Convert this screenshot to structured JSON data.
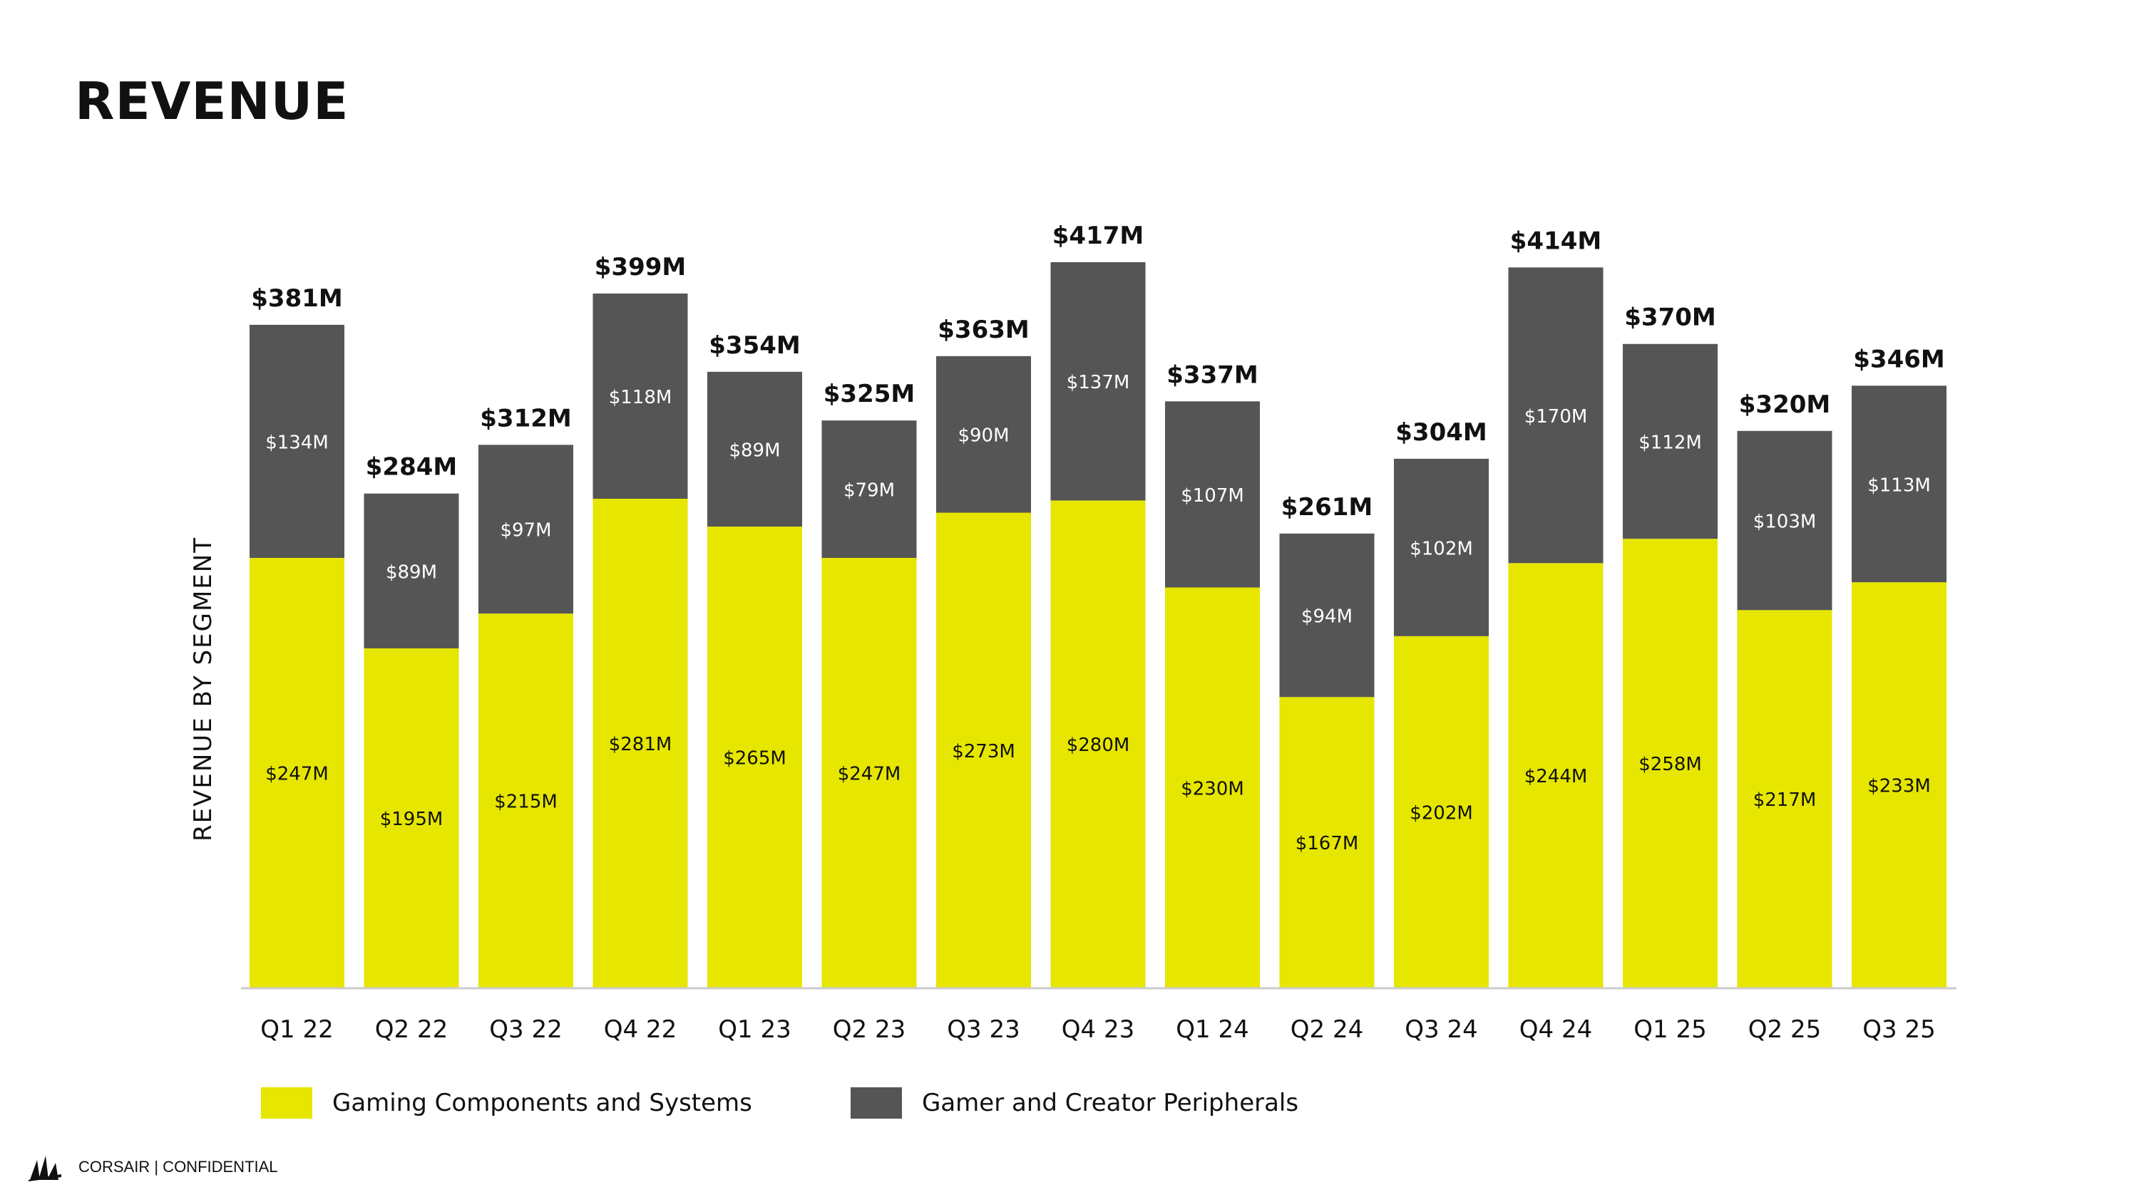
{
  "page": {
    "title": "REVENUE",
    "footer": "CORSAIR | CONFIDENTIAL",
    "logo_icon": "corsair-sails-icon"
  },
  "colors": {
    "gaming": "#E6E600",
    "peripherals": "#555555",
    "text": "#111111",
    "axis": "#cccccc"
  },
  "legend": [
    {
      "label": "Gaming Components and Systems",
      "color": "#E6E600"
    },
    {
      "label": "Gamer and Creator Peripherals",
      "color": "#555555"
    }
  ],
  "chart_data": {
    "type": "bar",
    "stacked": true,
    "title": "REVENUE",
    "xlabel": "",
    "ylabel": "REVENUE BY SEGMENT",
    "ylim": [
      0,
      417
    ],
    "grid": false,
    "legend_position": "bottom",
    "categories": [
      "Q1 22",
      "Q2 22",
      "Q3 22",
      "Q4 22",
      "Q1 23",
      "Q2 23",
      "Q3 23",
      "Q4 23",
      "Q1 24",
      "Q2 24",
      "Q3 24",
      "Q4 24",
      "Q1 25",
      "Q2 25",
      "Q3 25"
    ],
    "series": [
      {
        "name": "Gaming Components and Systems",
        "values": [
          247,
          195,
          215,
          281,
          265,
          247,
          273,
          280,
          230,
          167,
          202,
          244,
          258,
          217,
          233
        ]
      },
      {
        "name": "Gamer and Creator Peripherals",
        "values": [
          134,
          89,
          97,
          118,
          89,
          79,
          90,
          137,
          107,
          94,
          102,
          170,
          112,
          103,
          113
        ]
      }
    ],
    "totals": [
      381,
      284,
      312,
      399,
      354,
      325,
      363,
      417,
      337,
      261,
      304,
      414,
      370,
      320,
      346
    ],
    "value_prefix": "$",
    "value_suffix": "M"
  }
}
